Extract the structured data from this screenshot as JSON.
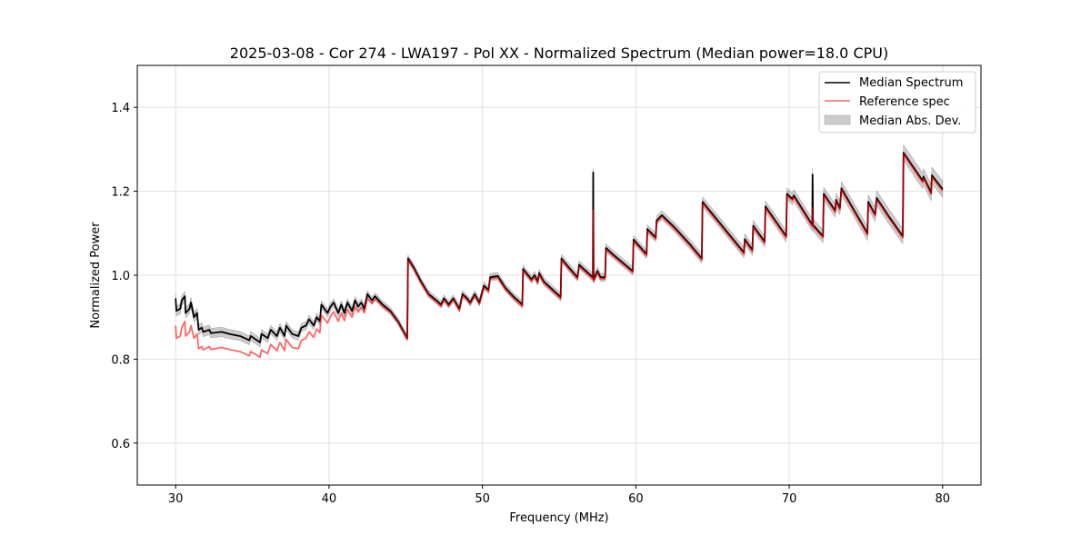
{
  "chart_data": {
    "type": "line",
    "title": "2025-03-08 - Cor 274 - LWA197 - Pol XX - Normalized Spectrum (Median power=18.0 CPU)",
    "xlabel": "Frequency (MHz)",
    "ylabel": "Normalized Power",
    "xlim": [
      27.5,
      82.5
    ],
    "ylim": [
      0.5,
      1.5
    ],
    "xticks": [
      30,
      40,
      50,
      60,
      70,
      80
    ],
    "yticks": [
      0.6,
      0.8,
      1.0,
      1.2,
      1.4
    ],
    "ytick_labels": [
      "0.6",
      "0.8",
      "1.0",
      "1.2",
      "1.4"
    ],
    "grid": true,
    "legend_position": "top-right",
    "legend": [
      "Median Spectrum",
      "Reference spec",
      "Median Abs. Dev."
    ],
    "colors": {
      "median": "#000000",
      "reference": "#ff0000",
      "mad": "#c8c8c8"
    },
    "x": [
      30.0,
      30.05,
      30.3,
      30.4,
      30.6,
      30.65,
      30.9,
      31.0,
      31.2,
      31.4,
      31.5,
      31.7,
      31.8,
      32.2,
      32.3,
      33.0,
      33.5,
      34.2,
      34.8,
      34.9,
      35.5,
      35.6,
      36.0,
      36.2,
      36.6,
      36.8,
      37.1,
      37.2,
      37.6,
      38.0,
      38.2,
      38.5,
      38.7,
      39.0,
      39.2,
      39.4,
      39.5,
      39.9,
      40.1,
      40.3,
      40.6,
      40.8,
      41.0,
      41.2,
      41.5,
      41.7,
      41.9,
      42.1,
      42.3,
      42.5,
      42.8,
      43.0,
      43.5,
      44.0,
      44.5,
      45.1,
      45.15,
      45.5,
      46.0,
      46.5,
      47.0,
      47.3,
      47.5,
      47.8,
      48.1,
      48.5,
      48.7,
      49.0,
      49.2,
      49.5,
      49.8,
      50.1,
      50.4,
      50.5,
      51.0,
      51.5,
      52.0,
      52.6,
      52.65,
      53.2,
      53.4,
      53.6,
      53.7,
      54.0,
      55.1,
      55.15,
      55.6,
      56.2,
      56.3,
      57.2,
      57.22,
      57.25,
      57.5,
      57.7,
      58.0,
      58.05,
      58.5,
      59.8,
      59.85,
      60.7,
      60.75,
      61.3,
      61.35,
      61.7,
      62.5,
      63.5,
      64.3,
      64.35,
      67.05,
      67.1,
      67.6,
      67.65,
      68.4,
      68.45,
      69.8,
      69.85,
      70.2,
      70.3,
      71.5,
      71.52,
      71.55,
      72.2,
      72.25,
      73.0,
      73.05,
      73.3,
      73.4,
      75.1,
      75.15,
      75.6,
      75.7,
      76.5,
      77.4,
      77.45,
      78.7,
      78.75,
      79.25,
      79.3,
      80.0
    ],
    "series": [
      {
        "name": "Median Spectrum",
        "values": [
          0.945,
          0.915,
          0.92,
          0.94,
          0.95,
          0.91,
          0.92,
          0.935,
          0.9,
          0.91,
          0.87,
          0.875,
          0.865,
          0.87,
          0.862,
          0.865,
          0.86,
          0.855,
          0.845,
          0.855,
          0.84,
          0.86,
          0.85,
          0.87,
          0.855,
          0.875,
          0.855,
          0.88,
          0.86,
          0.855,
          0.875,
          0.88,
          0.895,
          0.88,
          0.9,
          0.89,
          0.93,
          0.91,
          0.925,
          0.935,
          0.91,
          0.93,
          0.91,
          0.935,
          0.915,
          0.94,
          0.925,
          0.935,
          0.92,
          0.955,
          0.94,
          0.95,
          0.93,
          0.915,
          0.89,
          0.85,
          1.04,
          1.02,
          0.985,
          0.955,
          0.94,
          0.93,
          0.945,
          0.93,
          0.945,
          0.92,
          0.955,
          0.945,
          0.935,
          0.955,
          0.935,
          0.975,
          0.965,
          0.995,
          0.998,
          0.97,
          0.95,
          0.93,
          1.015,
          0.99,
          1.0,
          0.985,
          1.005,
          0.985,
          0.948,
          1.04,
          1.02,
          0.995,
          1.025,
          0.995,
          1.245,
          0.99,
          1.01,
          0.995,
          0.995,
          1.065,
          1.05,
          1.01,
          1.085,
          1.05,
          1.11,
          1.09,
          1.13,
          1.143,
          1.115,
          1.075,
          1.04,
          1.175,
          1.054,
          1.086,
          1.06,
          1.118,
          1.08,
          1.164,
          1.093,
          1.194,
          1.182,
          1.19,
          1.12,
          1.24,
          1.12,
          1.093,
          1.194,
          1.154,
          1.18,
          1.16,
          1.207,
          1.1,
          1.175,
          1.145,
          1.184,
          1.14,
          1.093,
          1.292,
          1.225,
          1.235,
          1.197,
          1.238,
          1.205
        ]
      },
      {
        "name": "Reference spec",
        "values": [
          0.88,
          0.85,
          0.855,
          0.875,
          0.89,
          0.855,
          0.865,
          0.88,
          0.85,
          0.86,
          0.825,
          0.83,
          0.822,
          0.83,
          0.823,
          0.828,
          0.823,
          0.818,
          0.808,
          0.818,
          0.805,
          0.822,
          0.813,
          0.835,
          0.82,
          0.84,
          0.82,
          0.847,
          0.828,
          0.825,
          0.845,
          0.85,
          0.865,
          0.852,
          0.872,
          0.863,
          0.905,
          0.886,
          0.902,
          0.913,
          0.89,
          0.91,
          0.892,
          0.918,
          0.9,
          0.925,
          0.912,
          0.923,
          0.91,
          0.945,
          0.932,
          0.943,
          0.925,
          0.911,
          0.887,
          0.848,
          1.036,
          1.016,
          0.981,
          0.951,
          0.936,
          0.926,
          0.941,
          0.926,
          0.941,
          0.916,
          0.951,
          0.941,
          0.931,
          0.951,
          0.931,
          0.971,
          0.961,
          0.991,
          0.994,
          0.966,
          0.946,
          0.926,
          1.011,
          0.986,
          0.996,
          0.981,
          1.001,
          0.981,
          0.944,
          1.036,
          1.016,
          0.991,
          1.021,
          0.991,
          1.155,
          0.986,
          1.006,
          0.991,
          0.991,
          1.061,
          1.046,
          1.006,
          1.081,
          1.046,
          1.106,
          1.086,
          1.126,
          1.139,
          1.111,
          1.071,
          1.036,
          1.171,
          1.05,
          1.082,
          1.056,
          1.114,
          1.076,
          1.16,
          1.089,
          1.19,
          1.178,
          1.186,
          1.116,
          1.16,
          1.116,
          1.089,
          1.19,
          1.15,
          1.176,
          1.156,
          1.203,
          1.096,
          1.171,
          1.141,
          1.18,
          1.136,
          1.089,
          1.288,
          1.221,
          1.231,
          1.193,
          1.234,
          1.201
        ]
      }
    ],
    "mad_halfwidth": [
      [
        30,
        0.012
      ],
      [
        45,
        0.008
      ],
      [
        60,
        0.01
      ],
      [
        70,
        0.014
      ],
      [
        80,
        0.02
      ]
    ]
  }
}
